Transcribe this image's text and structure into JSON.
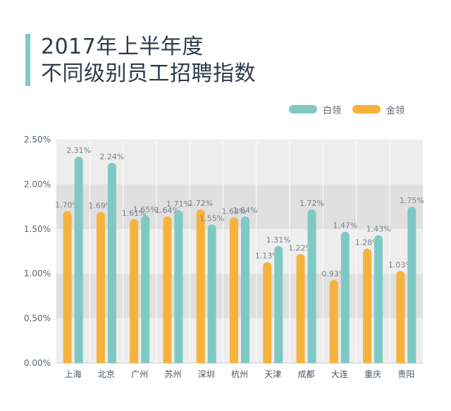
{
  "title": {
    "line1": "2017年上半年度",
    "line2": "不同级别员工招聘指数"
  },
  "colors": {
    "white_collar": "#7fc9c5",
    "gold_collar": "#f7b23e",
    "band_light": "#eeeeee",
    "band_dark": "#e0e0e0",
    "title_bar": "#7fc9c5"
  },
  "legend": [
    {
      "label": "白领",
      "color": "#7fc9c5"
    },
    {
      "label": "金领",
      "color": "#f7b23e"
    }
  ],
  "chart_data": {
    "type": "bar",
    "title": "2017年上半年度 不同级别员工招聘指数",
    "xlabel": "",
    "ylabel": "",
    "ylim": [
      0,
      2.5
    ],
    "yticks": [
      "0.00%",
      "0.50%",
      "1.00%",
      "1.50%",
      "2.00%",
      "2.50%"
    ],
    "grid": true,
    "legend_position": "top-right",
    "categories": [
      "上海",
      "北京",
      "广州",
      "苏州",
      "深圳",
      "杭州",
      "天津",
      "成都",
      "大连",
      "重庆",
      "贵阳"
    ],
    "series": [
      {
        "name": "金领",
        "color": "#f7b23e",
        "values": [
          1.7,
          1.69,
          1.61,
          1.64,
          1.72,
          1.63,
          1.13,
          1.22,
          0.93,
          1.28,
          1.03
        ],
        "labels": [
          "1.70%",
          "1.69%",
          "1.61%",
          "1.64%",
          "1.72%",
          "1.63%",
          "1.13%",
          "1.22%",
          "0.93%",
          "1.28%",
          "1.03%"
        ]
      },
      {
        "name": "白领",
        "color": "#7fc9c5",
        "values": [
          2.31,
          2.24,
          1.65,
          1.71,
          1.55,
          1.64,
          1.31,
          1.72,
          1.47,
          1.43,
          1.75
        ],
        "labels": [
          "2.31%",
          "2.24%",
          "1.65%",
          "1.71%",
          "1.55%",
          "1.64%",
          "1.31%",
          "1.72%",
          "1.47%",
          "1.43%",
          "1.75%"
        ]
      }
    ]
  }
}
